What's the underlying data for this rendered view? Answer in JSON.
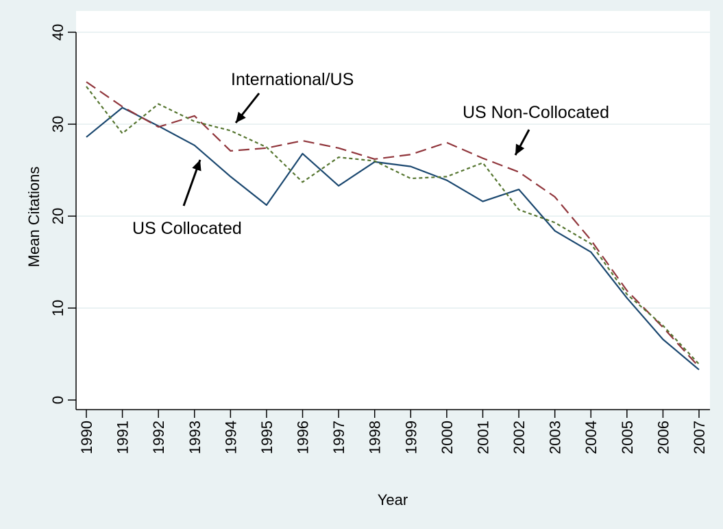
{
  "chart_data": {
    "type": "line",
    "title": "",
    "xlabel": "Year",
    "ylabel": "Mean Citations",
    "ylim": [
      0,
      40
    ],
    "yticks": [
      "0",
      "10",
      "20",
      "30",
      "40"
    ],
    "categories": [
      "1990",
      "1991",
      "1992",
      "1993",
      "1994",
      "1995",
      "1996",
      "1997",
      "1998",
      "1999",
      "2000",
      "2001",
      "2002",
      "2003",
      "2004",
      "2005",
      "2006",
      "2007"
    ],
    "grid": "horizontal",
    "background": "#eaf2f3",
    "series": [
      {
        "name": "US Collocated",
        "color": "#1a476f",
        "style": "solid",
        "values": [
          28.6,
          31.8,
          29.8,
          27.7,
          24.3,
          21.2,
          26.8,
          23.3,
          25.9,
          25.4,
          23.9,
          21.6,
          22.9,
          18.4,
          16.1,
          11.1,
          6.6,
          3.3
        ]
      },
      {
        "name": "US Non-Collocated",
        "color": "#90353b",
        "style": "dashed",
        "values": [
          34.6,
          31.9,
          29.7,
          30.9,
          27.1,
          27.4,
          28.2,
          27.4,
          26.2,
          26.7,
          28.0,
          26.3,
          24.8,
          22.1,
          17.4,
          11.9,
          7.9,
          3.6
        ]
      },
      {
        "name": "International/US",
        "color": "#55752f",
        "style": "dotted",
        "values": [
          34.1,
          29.0,
          32.2,
          30.3,
          29.3,
          27.5,
          23.7,
          26.4,
          26.0,
          24.1,
          24.3,
          25.8,
          20.7,
          19.3,
          17.0,
          11.5,
          8.1,
          3.9
        ]
      }
    ]
  },
  "annotations": {
    "international": "International/US",
    "non_collocated": "US Non-Collocated",
    "collocated": "US Collocated"
  }
}
